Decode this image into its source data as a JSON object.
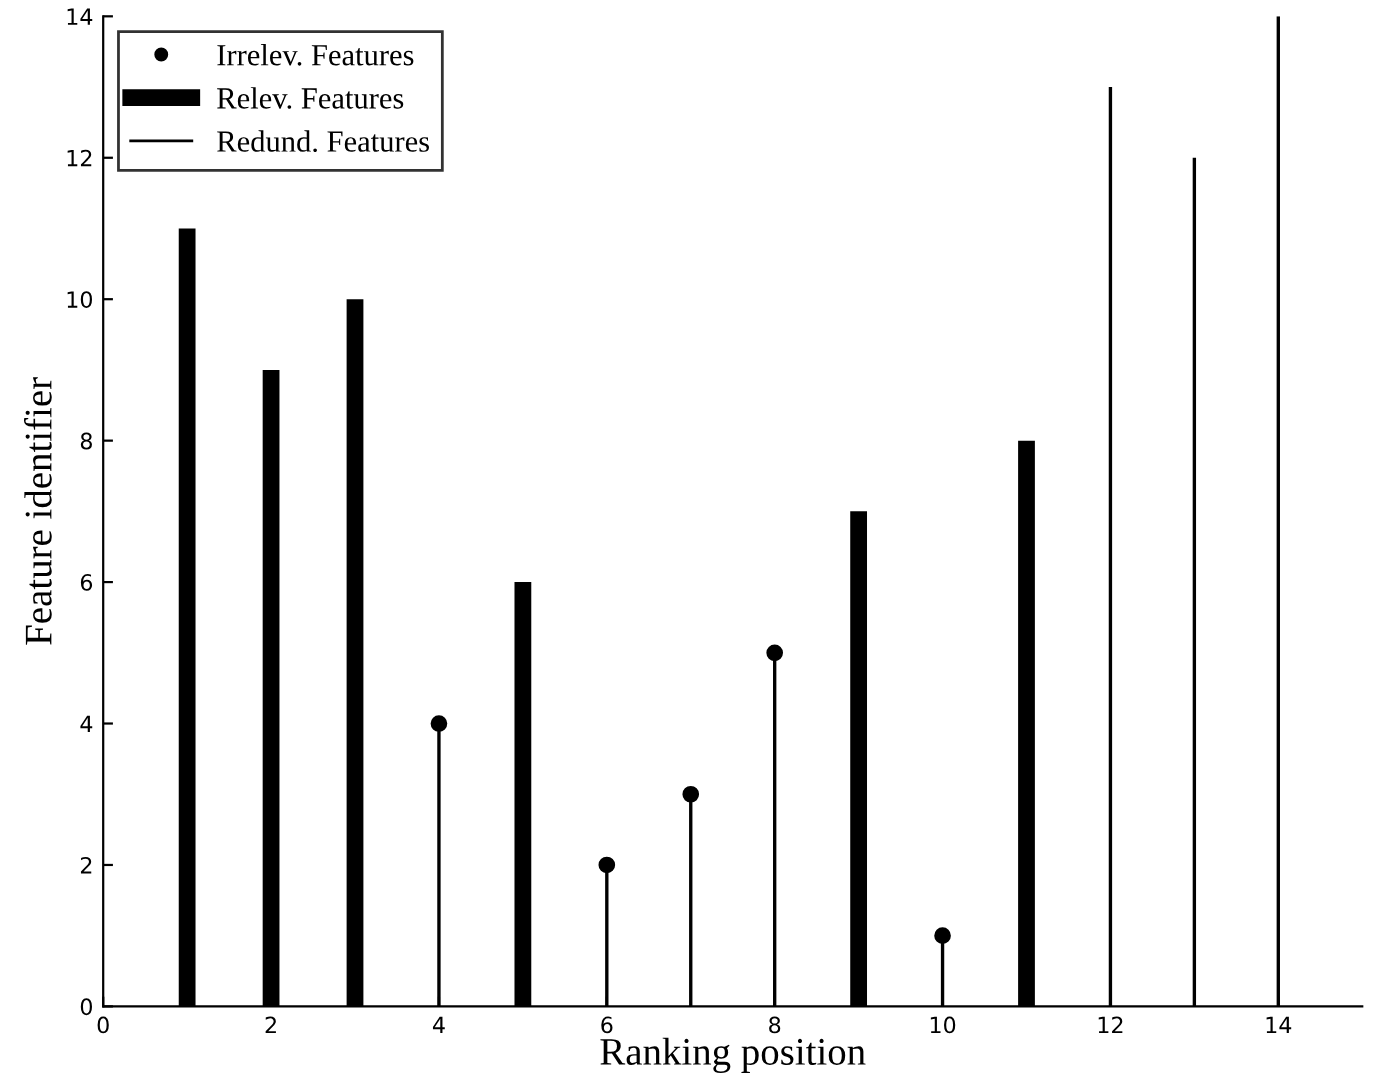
{
  "chart_data": {
    "type": "lollipop",
    "xlabel": "Ranking position",
    "ylabel": "Feature identifier",
    "xlim": [
      0,
      15
    ],
    "xticks": [
      0,
      2,
      4,
      6,
      8,
      10,
      12,
      14
    ],
    "ylim": [
      0,
      14
    ],
    "yticks": [
      0,
      2,
      4,
      6,
      8,
      10,
      12,
      14
    ],
    "legend": "top left",
    "series": [
      {
        "name": "Irrelev. Features",
        "marker": "circle",
        "color": "#000000",
        "x": [
          4,
          6,
          7,
          8,
          10
        ],
        "values": [
          4,
          2,
          3,
          5,
          1
        ]
      },
      {
        "name": "Relev. Features",
        "type": "bar",
        "color": "#000000",
        "x": [
          1,
          2,
          3,
          5,
          9,
          11
        ],
        "values": [
          11,
          9,
          10,
          6,
          7,
          8
        ]
      },
      {
        "name": "Redund. Features",
        "type": "bar",
        "marker": "none",
        "color": "#000000",
        "x": [
          12,
          13,
          14
        ],
        "values": [
          13,
          12,
          14
        ]
      }
    ]
  }
}
